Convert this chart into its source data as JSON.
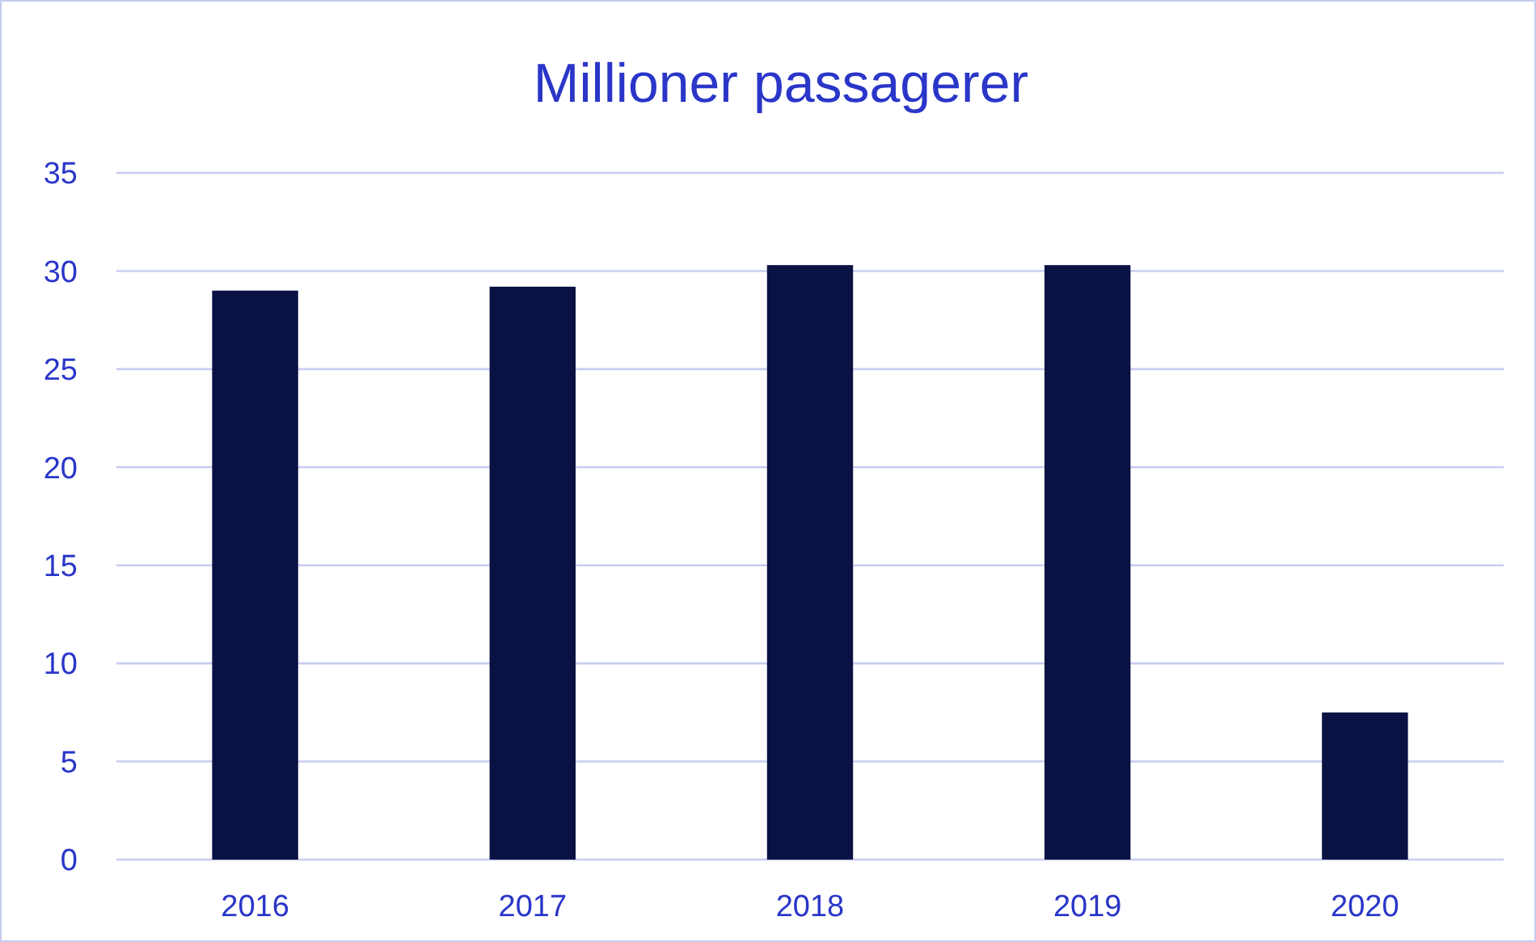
{
  "chart_data": {
    "type": "bar",
    "title": "Millioner passagerer",
    "categories": [
      "2016",
      "2017",
      "2018",
      "2019",
      "2020"
    ],
    "values": [
      29.0,
      29.2,
      30.3,
      30.3,
      7.5
    ],
    "color": "#0a1244",
    "ylim": [
      0,
      35
    ],
    "yticks": [
      0,
      5,
      10,
      15,
      20,
      25,
      30,
      35
    ],
    "grid": "y"
  }
}
